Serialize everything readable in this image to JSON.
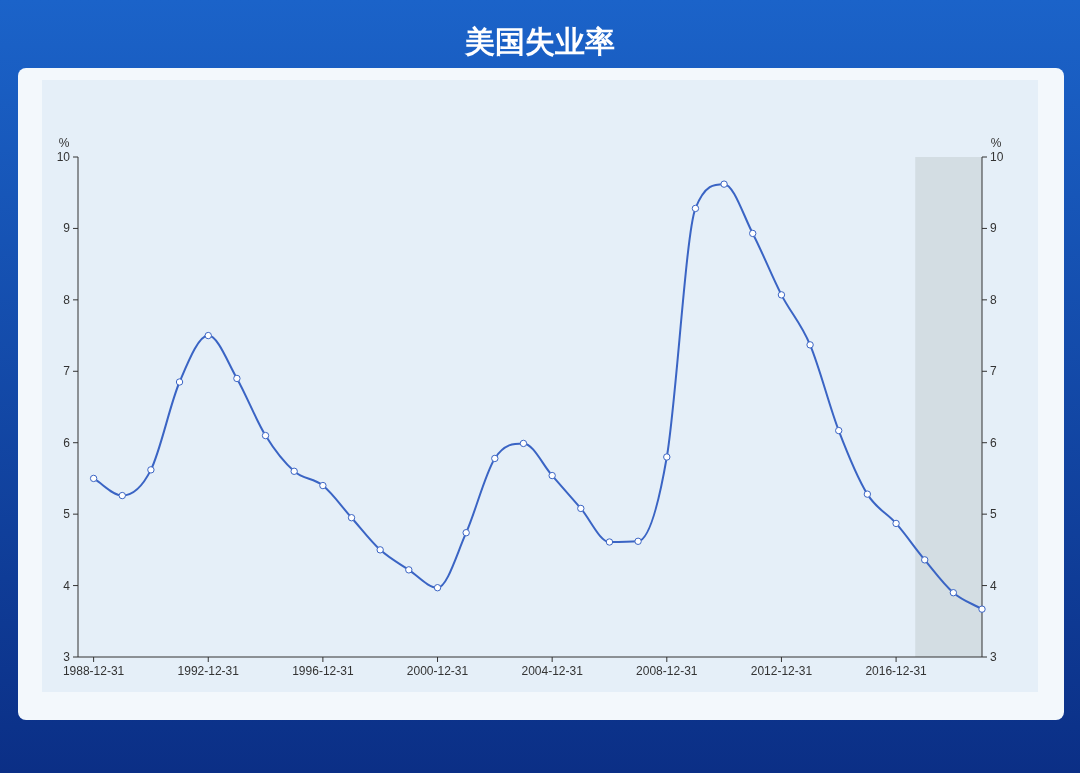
{
  "chart_data": {
    "type": "line",
    "title": "美国失业率",
    "ylabel": "%",
    "y2label": "%",
    "x": [
      "1988-12-31",
      "1989-12-31",
      "1990-12-31",
      "1991-12-31",
      "1992-12-31",
      "1993-12-31",
      "1994-12-31",
      "1995-12-31",
      "1996-12-31",
      "1997-12-31",
      "1998-12-31",
      "1999-12-31",
      "2000-12-31",
      "2001-12-31",
      "2002-12-31",
      "2003-12-31",
      "2004-12-31",
      "2005-12-31",
      "2006-12-31",
      "2007-12-31",
      "2008-12-31",
      "2009-12-31",
      "2010-12-31",
      "2011-12-31",
      "2012-12-31",
      "2013-12-31",
      "2014-12-31",
      "2015-12-31",
      "2016-12-31",
      "2017-12-31",
      "2018-12-31",
      "2019-12-31"
    ],
    "series": [
      {
        "color": "#3a64c4",
        "values": [
          5.5,
          5.26,
          5.62,
          6.85,
          7.5,
          6.9,
          6.1,
          5.6,
          5.4,
          4.95,
          4.5,
          4.22,
          3.97,
          4.74,
          5.78,
          5.99,
          5.54,
          5.08,
          4.61,
          4.62,
          5.8,
          9.28,
          9.62,
          8.93,
          8.07,
          7.37,
          6.17,
          5.28,
          4.87,
          4.36,
          3.9,
          3.67
        ]
      }
    ],
    "xlim": [
      "1988-06-15",
      "2019-12-31"
    ],
    "xticks": [
      {
        "value": "1988-12-31",
        "label": "1988-12-31"
      },
      {
        "value": "1992-12-31",
        "label": "1992-12-31"
      },
      {
        "value": "1996-12-31",
        "label": "1996-12-31"
      },
      {
        "value": "2000-12-31",
        "label": "2000-12-31"
      },
      {
        "value": "2004-12-31",
        "label": "2004-12-31"
      },
      {
        "value": "2008-12-31",
        "label": "2008-12-31"
      },
      {
        "value": "2012-12-31",
        "label": "2012-12-31"
      },
      {
        "value": "2016-12-31",
        "label": "2016-12-31"
      }
    ],
    "ylim": [
      3,
      10
    ],
    "yticks": [
      3,
      4,
      5,
      6,
      7,
      8,
      9,
      10
    ],
    "y2lim": [
      3,
      10
    ],
    "y2ticks": [
      3,
      4,
      5,
      6,
      7,
      8,
      9,
      10
    ],
    "bands": [
      {
        "axis": "x",
        "from": "2017-09-01",
        "to": "2019-12-31",
        "color": "#d3dde3"
      }
    ],
    "marker": "circle",
    "line_style": "solid"
  }
}
